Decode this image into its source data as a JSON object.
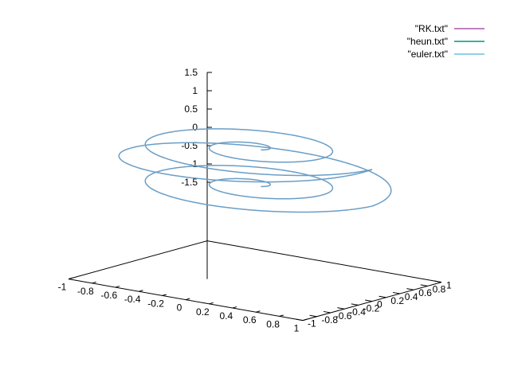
{
  "chart_data": {
    "type": "line",
    "projection": "3d",
    "grid": false,
    "legend": {
      "placement": "top-right"
    },
    "title": "",
    "xlabel": "",
    "ylabel": "",
    "zlabel": "",
    "xlim": [
      -1,
      1
    ],
    "ylim": [
      -1,
      1
    ],
    "zlim": [
      -1.5,
      1.5
    ],
    "x_ticks": [
      "-1",
      "-0.8",
      "-0.6",
      "-0.4",
      "-0.2",
      "0",
      "0.2",
      "0.4",
      "0.6",
      "0.8",
      "1"
    ],
    "y_ticks": [
      "-1",
      "-0.8",
      "-0.6",
      "-0.4",
      "-0.2",
      "0",
      "0.2",
      "0.4",
      "0.6",
      "0.8",
      "1"
    ],
    "z_ticks": [
      "1.5",
      "1",
      "0.5",
      "0",
      "-0.5",
      "-1",
      "-1.5"
    ],
    "series": [
      {
        "name": "\"RK.txt\"",
        "color": "#c080c0"
      },
      {
        "name": "\"heun.txt\"",
        "color": "#40b0a0"
      },
      {
        "name": "\"euler.txt\"",
        "color": "#90d0e8"
      }
    ],
    "curve": {
      "description_of_shape": "double spiral",
      "visible_color": "#6a9ec6",
      "lower_spiral": {
        "z": -0.5,
        "r_start": 0.05,
        "r_end": 1.0,
        "turns": 2.0
      },
      "upper_spiral": {
        "z": 0.5,
        "r_start": 0.05,
        "r_end": 1.0,
        "turns": 2.0
      },
      "connection": {
        "from_z": -0.5,
        "to_z": 0.5
      }
    }
  }
}
